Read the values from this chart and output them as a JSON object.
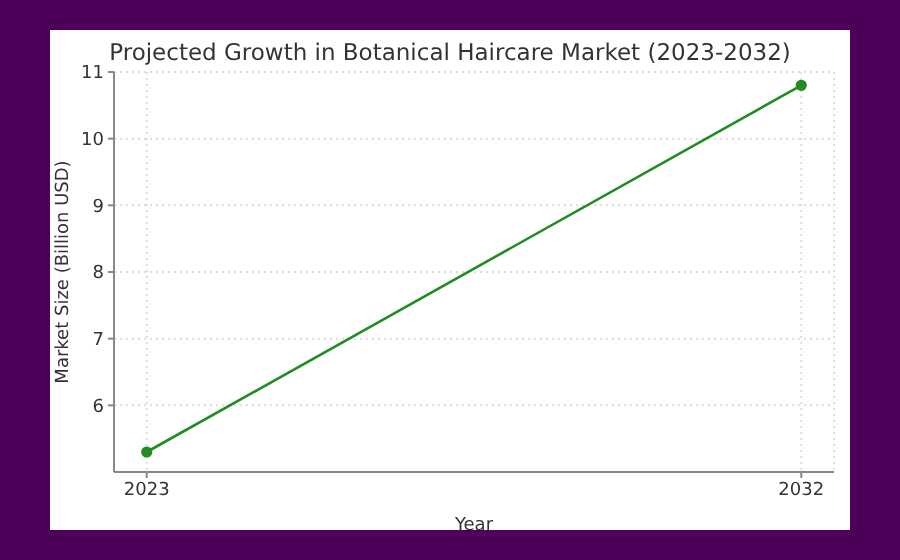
{
  "chart_data": {
    "type": "line",
    "title": "Projected Growth in Botanical Haircare Market (2023-2032)",
    "xlabel": "Year",
    "ylabel": "Market Size (Billion USD)",
    "x": [
      2023,
      2032
    ],
    "series": [
      {
        "color": "#228b22",
        "values": [
          5.3,
          10.8
        ]
      }
    ],
    "xlim": [
      2022.55,
      2032.45
    ],
    "xticks": [
      2023,
      2032
    ],
    "ylim": [
      5.0,
      11.0
    ],
    "yticks": [
      6,
      7,
      8,
      9,
      10,
      11
    ],
    "grid": true,
    "marker": "circle",
    "line_style": "solid"
  }
}
